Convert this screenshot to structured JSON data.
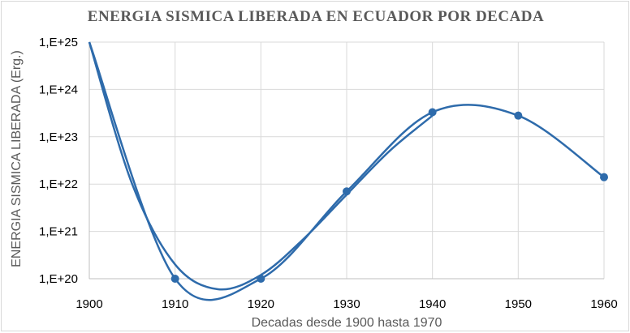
{
  "chart_data": {
    "type": "line",
    "title": "ENERGIA SISMICA LIBERADA EN ECUADOR POR DECADA",
    "xlabel": "Decadas desde 1900 hasta 1970",
    "ylabel": "ENERGIA SISMICA LIBERADA (Erg.)",
    "x_ticks": [
      "1900",
      "1910",
      "1920",
      "1930",
      "1940",
      "1950",
      "1960"
    ],
    "y_ticks": [
      "1,E+20",
      "1,E+21",
      "1,E+22",
      "1,E+23",
      "1,E+24",
      "1,E+25"
    ],
    "y_scale": "log",
    "ylim": [
      1e+20,
      1e+25
    ],
    "xlim": [
      1900,
      1960
    ],
    "grid": true,
    "legend": "none",
    "line_color": "#2e6bab",
    "series": [
      {
        "points": [
          {
            "x": 1900,
            "y": 1e+25
          },
          {
            "x": 1910,
            "y": 1e+20
          },
          {
            "x": 1920,
            "y": 1e+20
          },
          {
            "x": 1930,
            "y": 7e+21
          },
          {
            "x": 1940,
            "y": 3.3e+23
          },
          {
            "x": 1950,
            "y": 2.8e+23
          },
          {
            "x": 1960,
            "y": 1.4e+22
          }
        ]
      }
    ],
    "trendline": {
      "points": [
        {
          "x": 1900,
          "y": 1e+25
        },
        {
          "x": 1905,
          "y": 1e+22
        },
        {
          "x": 1910,
          "y": 2e+20
        },
        {
          "x": 1915,
          "y": 6e+19
        },
        {
          "x": 1920,
          "y": 1.2e+20
        },
        {
          "x": 1925,
          "y": 7e+20
        },
        {
          "x": 1930,
          "y": 6e+21
        },
        {
          "x": 1935,
          "y": 5e+22
        },
        {
          "x": 1940,
          "y": 2.8e+23
        }
      ]
    }
  }
}
